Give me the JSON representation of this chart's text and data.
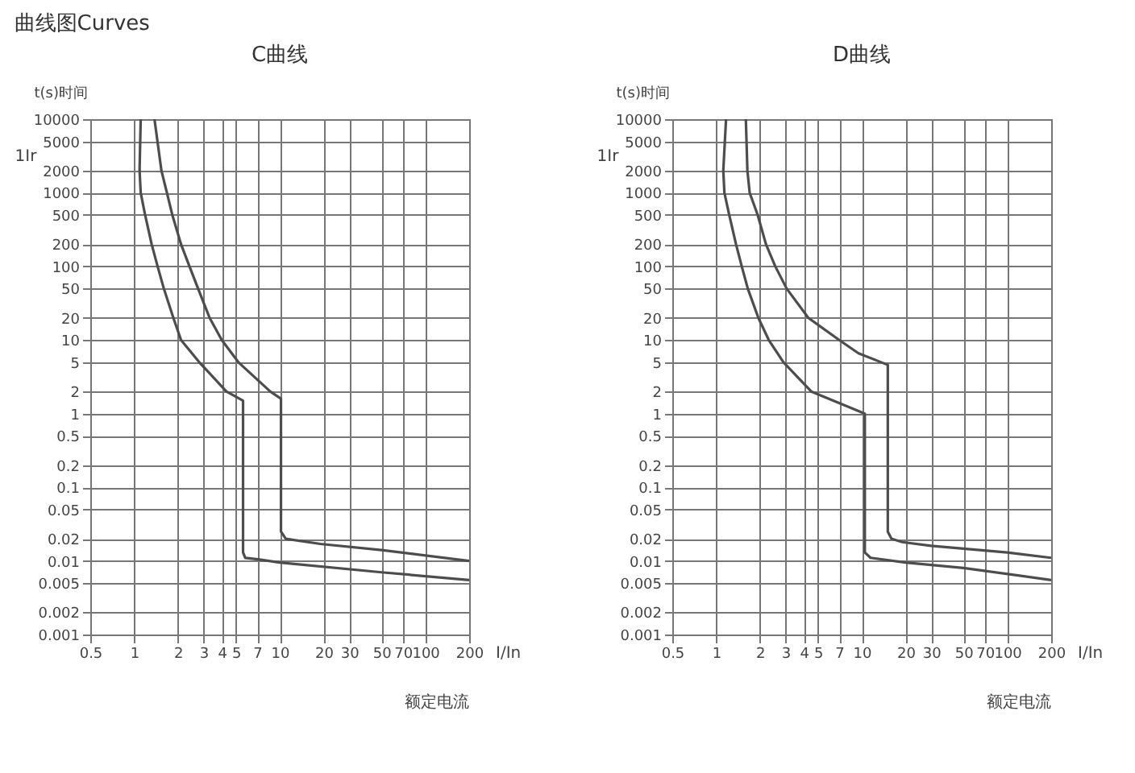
{
  "chart_data": [
    {
      "type": "line",
      "title": "C曲线",
      "xlabel": "I/In",
      "ylabel": "t(s)时间",
      "annotations": [
        "曲线图Curves",
        "1Ir",
        "额定电流"
      ],
      "log": "xy",
      "grid": true,
      "line_style": "solid",
      "xlim": [
        0.5,
        200
      ],
      "xticks": [
        0.5,
        1,
        2,
        3,
        4,
        5,
        7,
        10,
        20,
        30,
        50,
        70,
        100,
        200
      ],
      "ylim": [
        0.001,
        10000
      ],
      "yticks": [
        0.001,
        0.002,
        0.005,
        0.01,
        0.02,
        0.05,
        0.1,
        0.2,
        0.5,
        1,
        2,
        5,
        10,
        20,
        50,
        100,
        200,
        500,
        1000,
        2000,
        5000,
        10000
      ],
      "series": [
        {
          "color": "#4d4d4d",
          "x": [
            1.11,
            1.09,
            1.11,
            1.19,
            1.32,
            1.45,
            1.6,
            1.86,
            2.1,
            2.8,
            4.3,
            5.6,
            5.6,
            5.8,
            7.1,
            10,
            50,
            200
          ],
          "values": [
            10000,
            2000,
            1000,
            500,
            200,
            100,
            50,
            20,
            10,
            5,
            2,
            1.5,
            0.013,
            0.011,
            0.0105,
            0.0095,
            0.007,
            0.0055
          ]
        },
        {
          "color": "#4d4d4d",
          "x": [
            1.38,
            1.54,
            1.68,
            1.83,
            2.1,
            2.4,
            2.75,
            3.3,
            4,
            5.2,
            8.6,
            10.2,
            10.2,
            11,
            19,
            50,
            200
          ],
          "values": [
            10000,
            2000,
            1000,
            500,
            200,
            100,
            50,
            20,
            10,
            5,
            2,
            1.6,
            0.025,
            0.02,
            0.017,
            0.014,
            0.01
          ]
        }
      ]
    },
    {
      "type": "line",
      "title": "D曲线",
      "xlabel": "I/In",
      "ylabel": "t(s)时间",
      "annotations": [
        "1Ir",
        "额定电流"
      ],
      "log": "xy",
      "grid": true,
      "line_style": "solid",
      "xlim": [
        0.5,
        200
      ],
      "xticks": [
        0.5,
        1,
        2,
        3,
        4,
        5,
        7,
        10,
        20,
        30,
        50,
        70,
        100,
        200
      ],
      "ylim": [
        0.001,
        10000
      ],
      "yticks": [
        0.001,
        0.002,
        0.005,
        0.01,
        0.02,
        0.05,
        0.1,
        0.2,
        0.5,
        1,
        2,
        5,
        10,
        20,
        50,
        100,
        200,
        500,
        1000,
        2000,
        5000,
        10000
      ],
      "series": [
        {
          "color": "#4d4d4d",
          "x": [
            1.17,
            1.12,
            1.14,
            1.23,
            1.37,
            1.5,
            1.65,
            1.95,
            2.3,
            2.9,
            4.5,
            10.5,
            10.5,
            11.5,
            20,
            50,
            200
          ],
          "values": [
            10000,
            2000,
            1000,
            500,
            200,
            100,
            50,
            20,
            10,
            5,
            2,
            1,
            0.013,
            0.011,
            0.0095,
            0.008,
            0.0055
          ]
        },
        {
          "color": "#4d4d4d",
          "x": [
            1.6,
            1.64,
            1.7,
            1.93,
            2.2,
            2.55,
            3.05,
            4.3,
            7,
            9.5,
            15.1,
            15.1,
            16,
            19,
            30,
            100,
            200
          ],
          "values": [
            10000,
            2000,
            1000,
            500,
            200,
            100,
            50,
            20,
            10,
            6.6,
            4.6,
            0.025,
            0.02,
            0.018,
            0.016,
            0.013,
            0.011
          ]
        }
      ]
    }
  ]
}
